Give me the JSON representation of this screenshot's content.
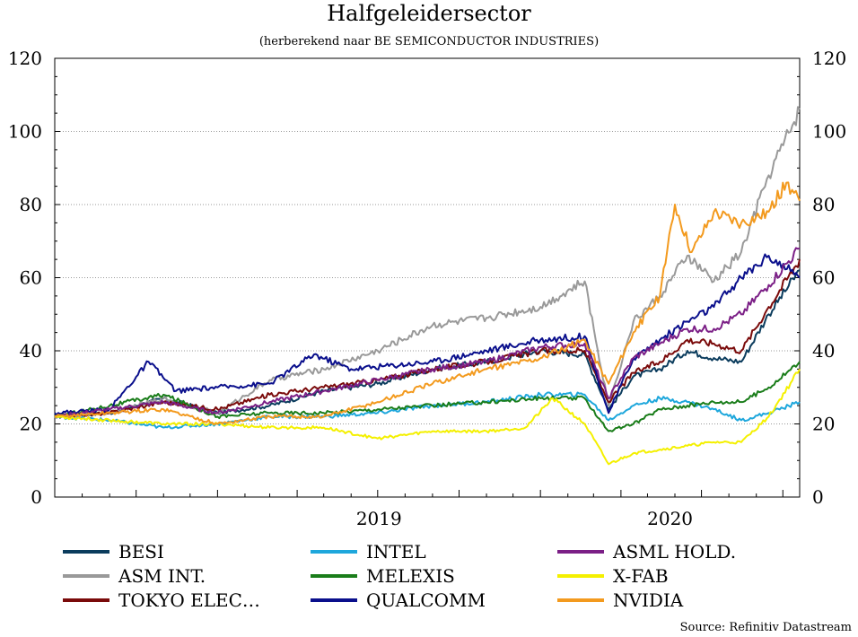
{
  "chart_data": {
    "type": "line",
    "title": "Halfgeleidersector",
    "subtitle": "(herberekend naar BE SEMICONDUCTOR INDUSTRIES)",
    "source": "Source: Refinitiv Datastream",
    "ylim": [
      0,
      120
    ],
    "yticks": [
      "0",
      "20",
      "40",
      "60",
      "80",
      "100",
      "120"
    ],
    "x_labels": [
      "2019",
      "2020"
    ],
    "xlim": [
      "2018-07-01",
      "2020-10-20"
    ],
    "grid": true,
    "legend_position": "bottom",
    "series": [
      {
        "name": "BESI",
        "color": "#0b3c5d",
        "x": [
          "2018-07-01",
          "2018-09-01",
          "2018-11-01",
          "2019-01-01",
          "2019-03-01",
          "2019-05-01",
          "2019-07-01",
          "2019-09-01",
          "2019-11-01",
          "2020-01-01",
          "2020-02-20",
          "2020-03-18",
          "2020-04-15",
          "2020-05-15",
          "2020-06-15",
          "2020-07-15",
          "2020-08-15",
          "2020-09-15",
          "2020-10-20"
        ],
        "y": [
          22,
          23,
          27,
          23,
          25,
          29,
          31,
          35,
          37,
          40,
          39,
          24,
          33,
          35,
          40,
          38,
          37,
          50,
          62
        ]
      },
      {
        "name": "ASM INT.",
        "color": "#999999",
        "x": [
          "2018-07-01",
          "2018-09-01",
          "2018-11-01",
          "2019-01-01",
          "2019-03-01",
          "2019-05-01",
          "2019-07-01",
          "2019-09-01",
          "2019-11-01",
          "2020-01-01",
          "2020-02-20",
          "2020-03-18",
          "2020-04-15",
          "2020-05-15",
          "2020-06-15",
          "2020-07-15",
          "2020-08-15",
          "2020-09-15",
          "2020-10-20"
        ],
        "y": [
          22,
          23,
          27,
          23,
          32,
          35,
          40,
          47,
          49,
          52,
          59,
          25,
          48,
          55,
          66,
          59,
          67,
          88,
          106
        ]
      },
      {
        "name": "TOKYO ELEC…",
        "color": "#7a0a0a",
        "x": [
          "2018-07-01",
          "2018-09-01",
          "2018-11-01",
          "2019-01-01",
          "2019-03-01",
          "2019-05-01",
          "2019-07-01",
          "2019-09-01",
          "2019-11-01",
          "2020-01-01",
          "2020-02-20",
          "2020-03-18",
          "2020-04-15",
          "2020-05-15",
          "2020-06-15",
          "2020-07-15",
          "2020-08-15",
          "2020-09-15",
          "2020-10-20"
        ],
        "y": [
          22,
          23,
          26,
          24,
          28,
          30,
          32,
          35,
          37,
          40,
          40,
          26,
          34,
          37,
          43,
          42,
          40,
          52,
          65
        ]
      },
      {
        "name": "INTEL",
        "color": "#1ea7dc",
        "x": [
          "2018-07-01",
          "2018-09-01",
          "2018-11-01",
          "2019-01-01",
          "2019-03-01",
          "2019-05-01",
          "2019-07-01",
          "2019-09-01",
          "2019-11-01",
          "2020-01-01",
          "2020-02-20",
          "2020-03-18",
          "2020-04-15",
          "2020-05-15",
          "2020-06-15",
          "2020-07-15",
          "2020-08-15",
          "2020-09-15",
          "2020-10-20"
        ],
        "y": [
          22,
          21,
          19,
          20,
          22,
          22,
          23,
          25,
          26,
          28,
          28,
          21,
          25,
          27,
          26,
          24,
          21,
          23,
          26
        ]
      },
      {
        "name": "MELEXIS",
        "color": "#1a7d1a",
        "x": [
          "2018-07-01",
          "2018-09-01",
          "2018-11-01",
          "2019-01-01",
          "2019-03-01",
          "2019-05-01",
          "2019-07-01",
          "2019-09-01",
          "2019-11-01",
          "2020-01-01",
          "2020-02-20",
          "2020-03-18",
          "2020-04-15",
          "2020-05-15",
          "2020-06-15",
          "2020-07-15",
          "2020-08-15",
          "2020-09-15",
          "2020-10-20"
        ],
        "y": [
          22,
          25,
          28,
          22,
          23,
          23,
          24,
          25,
          26,
          27,
          27,
          18,
          20,
          24,
          25,
          26,
          26,
          30,
          37
        ]
      },
      {
        "name": "QUALCOMM",
        "color": "#0a0f8c",
        "x": [
          "2018-07-01",
          "2018-09-01",
          "2018-10-15",
          "2018-11-15",
          "2019-01-01",
          "2019-03-01",
          "2019-04-20",
          "2019-06-01",
          "2019-09-01",
          "2019-11-01",
          "2020-01-01",
          "2020-02-20",
          "2020-03-18",
          "2020-04-15",
          "2020-05-15",
          "2020-06-15",
          "2020-07-15",
          "2020-08-15",
          "2020-09-15",
          "2020-10-20"
        ],
        "y": [
          23,
          24,
          37,
          29,
          30,
          31,
          39,
          35,
          37,
          40,
          43,
          44,
          23,
          38,
          43,
          48,
          52,
          60,
          66,
          60
        ]
      },
      {
        "name": "ASML HOLD.",
        "color": "#7b1f86",
        "x": [
          "2018-07-01",
          "2018-09-01",
          "2018-11-01",
          "2019-01-01",
          "2019-03-01",
          "2019-05-01",
          "2019-07-01",
          "2019-09-01",
          "2019-11-01",
          "2020-01-01",
          "2020-02-20",
          "2020-03-18",
          "2020-04-15",
          "2020-05-15",
          "2020-06-15",
          "2020-07-15",
          "2020-08-15",
          "2020-09-15",
          "2020-10-20"
        ],
        "y": [
          22,
          24,
          26,
          23,
          26,
          29,
          32,
          35,
          37,
          41,
          42,
          27,
          38,
          42,
          46,
          46,
          50,
          58,
          68
        ]
      },
      {
        "name": "X-FAB",
        "color": "#f4f000",
        "x": [
          "2018-07-01",
          "2018-09-01",
          "2018-11-01",
          "2019-01-01",
          "2019-03-01",
          "2019-05-01",
          "2019-07-01",
          "2019-09-01",
          "2019-11-01",
          "2019-12-15",
          "2020-01-15",
          "2020-02-20",
          "2020-03-18",
          "2020-04-15",
          "2020-05-15",
          "2020-06-15",
          "2020-07-15",
          "2020-08-15",
          "2020-09-15",
          "2020-10-20"
        ],
        "y": [
          22,
          21,
          20,
          20,
          19,
          19,
          16,
          18,
          18,
          19,
          27,
          20,
          9,
          12,
          13,
          14,
          15,
          15,
          22,
          35
        ]
      },
      {
        "name": "NVIDIA",
        "color": "#f39a1e",
        "x": [
          "2018-07-01",
          "2018-09-01",
          "2018-11-01",
          "2019-01-01",
          "2019-03-01",
          "2019-05-01",
          "2019-07-01",
          "2019-09-01",
          "2019-11-01",
          "2020-01-01",
          "2020-02-20",
          "2020-03-18",
          "2020-04-15",
          "2020-05-15",
          "2020-06-01",
          "2020-06-20",
          "2020-07-15",
          "2020-08-15",
          "2020-09-15",
          "2020-10-05",
          "2020-10-20"
        ],
        "y": [
          22,
          23,
          24,
          20,
          22,
          22,
          26,
          31,
          35,
          38,
          43,
          31,
          45,
          55,
          80,
          67,
          78,
          75,
          78,
          86,
          81
        ]
      }
    ]
  }
}
